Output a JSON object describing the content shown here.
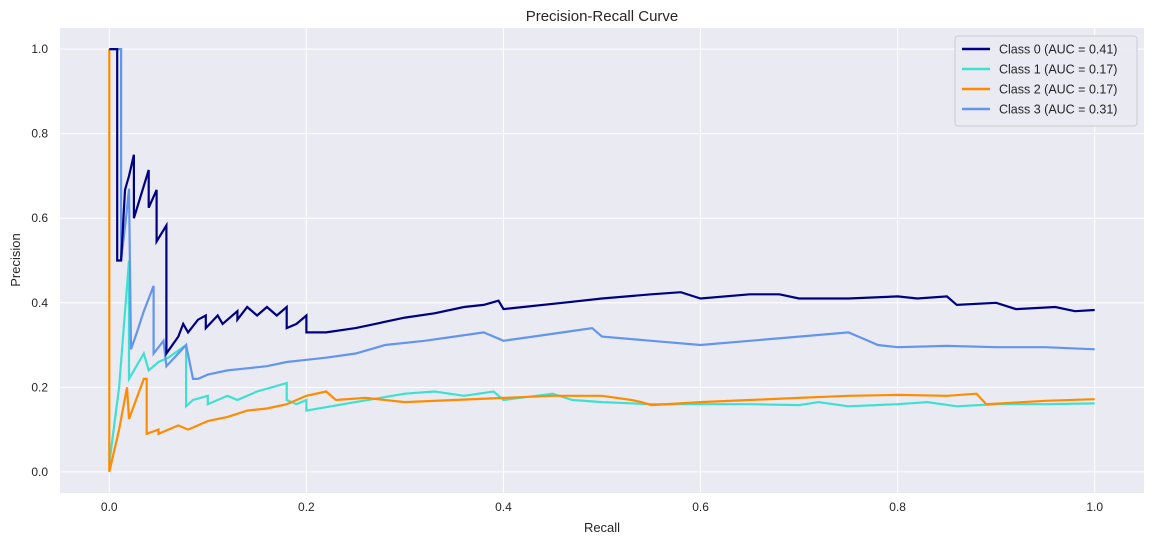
{
  "chart_data": {
    "type": "line",
    "title": "Precision-Recall Curve",
    "xlabel": "Recall",
    "ylabel": "Precision",
    "xlim": [
      -0.05,
      1.05
    ],
    "ylim": [
      -0.05,
      1.05
    ],
    "xticks": [
      0.0,
      0.2,
      0.4,
      0.6,
      0.8,
      1.0
    ],
    "yticks": [
      0.0,
      0.2,
      0.4,
      0.6,
      0.8,
      1.0
    ],
    "xtick_labels": [
      "0.0",
      "0.2",
      "0.4",
      "0.6",
      "0.8",
      "1.0"
    ],
    "ytick_labels": [
      "0.0",
      "0.2",
      "0.4",
      "0.6",
      "0.8",
      "1.0"
    ],
    "grid": true,
    "legend_position": "top-right",
    "style": {
      "background": "#eaeaf2",
      "grid_color": "#ffffff"
    },
    "series": [
      {
        "name": "Class 0 (AUC = 0.41)",
        "color": "#000080",
        "points": [
          [
            0,
            1
          ],
          [
            0.008,
            1
          ],
          [
            0.008,
            0.5
          ],
          [
            0.012,
            0.5
          ],
          [
            0.016,
            0.667
          ],
          [
            0.02,
            0.7
          ],
          [
            0.025,
            0.75
          ],
          [
            0.025,
            0.6
          ],
          [
            0.04,
            0.714
          ],
          [
            0.04,
            0.625
          ],
          [
            0.048,
            0.667
          ],
          [
            0.048,
            0.545
          ],
          [
            0.058,
            0.583
          ],
          [
            0.058,
            0.28
          ],
          [
            0.07,
            0.32
          ],
          [
            0.075,
            0.35
          ],
          [
            0.08,
            0.33
          ],
          [
            0.09,
            0.36
          ],
          [
            0.098,
            0.37
          ],
          [
            0.098,
            0.34
          ],
          [
            0.11,
            0.37
          ],
          [
            0.115,
            0.35
          ],
          [
            0.13,
            0.38
          ],
          [
            0.13,
            0.36
          ],
          [
            0.14,
            0.39
          ],
          [
            0.15,
            0.37
          ],
          [
            0.16,
            0.39
          ],
          [
            0.17,
            0.37
          ],
          [
            0.18,
            0.39
          ],
          [
            0.18,
            0.34
          ],
          [
            0.19,
            0.35
          ],
          [
            0.2,
            0.37
          ],
          [
            0.2,
            0.33
          ],
          [
            0.22,
            0.33
          ],
          [
            0.25,
            0.34
          ],
          [
            0.27,
            0.35
          ],
          [
            0.3,
            0.365
          ],
          [
            0.33,
            0.375
          ],
          [
            0.36,
            0.39
          ],
          [
            0.38,
            0.395
          ],
          [
            0.395,
            0.405
          ],
          [
            0.4,
            0.385
          ],
          [
            0.42,
            0.39
          ],
          [
            0.46,
            0.4
          ],
          [
            0.5,
            0.41
          ],
          [
            0.55,
            0.42
          ],
          [
            0.58,
            0.425
          ],
          [
            0.6,
            0.41
          ],
          [
            0.65,
            0.42
          ],
          [
            0.68,
            0.42
          ],
          [
            0.7,
            0.41
          ],
          [
            0.75,
            0.41
          ],
          [
            0.8,
            0.415
          ],
          [
            0.82,
            0.41
          ],
          [
            0.85,
            0.415
          ],
          [
            0.86,
            0.395
          ],
          [
            0.9,
            0.4
          ],
          [
            0.92,
            0.385
          ],
          [
            0.96,
            0.39
          ],
          [
            0.98,
            0.38
          ],
          [
            1.0,
            0.383
          ]
        ]
      },
      {
        "name": "Class 1 (AUC = 0.17)",
        "color": "#40e0d0",
        "points": [
          [
            0,
            0.02
          ],
          [
            0.01,
            0.2
          ],
          [
            0.02,
            0.5
          ],
          [
            0.02,
            0.22
          ],
          [
            0.035,
            0.28
          ],
          [
            0.04,
            0.24
          ],
          [
            0.05,
            0.26
          ],
          [
            0.06,
            0.27
          ],
          [
            0.078,
            0.3
          ],
          [
            0.078,
            0.155
          ],
          [
            0.085,
            0.17
          ],
          [
            0.1,
            0.18
          ],
          [
            0.1,
            0.16
          ],
          [
            0.12,
            0.18
          ],
          [
            0.13,
            0.17
          ],
          [
            0.15,
            0.19
          ],
          [
            0.18,
            0.21
          ],
          [
            0.18,
            0.17
          ],
          [
            0.19,
            0.16
          ],
          [
            0.2,
            0.17
          ],
          [
            0.2,
            0.145
          ],
          [
            0.25,
            0.165
          ],
          [
            0.3,
            0.185
          ],
          [
            0.33,
            0.19
          ],
          [
            0.36,
            0.18
          ],
          [
            0.39,
            0.19
          ],
          [
            0.4,
            0.17
          ],
          [
            0.45,
            0.185
          ],
          [
            0.47,
            0.17
          ],
          [
            0.5,
            0.165
          ],
          [
            0.55,
            0.16
          ],
          [
            0.6,
            0.16
          ],
          [
            0.65,
            0.16
          ],
          [
            0.7,
            0.158
          ],
          [
            0.72,
            0.165
          ],
          [
            0.75,
            0.155
          ],
          [
            0.8,
            0.16
          ],
          [
            0.83,
            0.165
          ],
          [
            0.86,
            0.155
          ],
          [
            0.9,
            0.16
          ],
          [
            0.95,
            0.16
          ],
          [
            1.0,
            0.162
          ]
        ]
      },
      {
        "name": "Class 2 (AUC = 0.17)",
        "color": "#ff8c00",
        "points": [
          [
            0,
            1
          ],
          [
            0,
            0.0
          ],
          [
            0.01,
            0.1
          ],
          [
            0.018,
            0.2
          ],
          [
            0.02,
            0.125
          ],
          [
            0.035,
            0.22
          ],
          [
            0.038,
            0.22
          ],
          [
            0.038,
            0.09
          ],
          [
            0.05,
            0.1
          ],
          [
            0.05,
            0.09
          ],
          [
            0.07,
            0.11
          ],
          [
            0.08,
            0.1
          ],
          [
            0.1,
            0.12
          ],
          [
            0.12,
            0.13
          ],
          [
            0.14,
            0.145
          ],
          [
            0.16,
            0.15
          ],
          [
            0.18,
            0.16
          ],
          [
            0.2,
            0.18
          ],
          [
            0.22,
            0.19
          ],
          [
            0.23,
            0.17
          ],
          [
            0.26,
            0.175
          ],
          [
            0.3,
            0.165
          ],
          [
            0.35,
            0.17
          ],
          [
            0.4,
            0.175
          ],
          [
            0.45,
            0.18
          ],
          [
            0.5,
            0.18
          ],
          [
            0.53,
            0.17
          ],
          [
            0.54,
            0.165
          ],
          [
            0.55,
            0.158
          ],
          [
            0.6,
            0.165
          ],
          [
            0.65,
            0.17
          ],
          [
            0.7,
            0.175
          ],
          [
            0.75,
            0.18
          ],
          [
            0.8,
            0.182
          ],
          [
            0.85,
            0.18
          ],
          [
            0.88,
            0.185
          ],
          [
            0.89,
            0.16
          ],
          [
            0.95,
            0.168
          ],
          [
            1.0,
            0.172
          ]
        ]
      },
      {
        "name": "Class 3 (AUC = 0.31)",
        "color": "#6495ed",
        "points": [
          [
            0.0,
            1
          ],
          [
            0.012,
            1
          ],
          [
            0.012,
            0.5
          ],
          [
            0.017,
            0.6
          ],
          [
            0.02,
            0.67
          ],
          [
            0.022,
            0.29
          ],
          [
            0.028,
            0.33
          ],
          [
            0.035,
            0.38
          ],
          [
            0.045,
            0.44
          ],
          [
            0.045,
            0.28
          ],
          [
            0.055,
            0.31
          ],
          [
            0.058,
            0.25
          ],
          [
            0.07,
            0.28
          ],
          [
            0.078,
            0.3
          ],
          [
            0.085,
            0.22
          ],
          [
            0.09,
            0.22
          ],
          [
            0.1,
            0.23
          ],
          [
            0.12,
            0.24
          ],
          [
            0.14,
            0.245
          ],
          [
            0.16,
            0.25
          ],
          [
            0.18,
            0.26
          ],
          [
            0.2,
            0.265
          ],
          [
            0.22,
            0.27
          ],
          [
            0.25,
            0.28
          ],
          [
            0.28,
            0.3
          ],
          [
            0.32,
            0.31
          ],
          [
            0.35,
            0.32
          ],
          [
            0.38,
            0.33
          ],
          [
            0.4,
            0.31
          ],
          [
            0.43,
            0.32
          ],
          [
            0.46,
            0.33
          ],
          [
            0.49,
            0.34
          ],
          [
            0.5,
            0.32
          ],
          [
            0.55,
            0.31
          ],
          [
            0.6,
            0.3
          ],
          [
            0.65,
            0.31
          ],
          [
            0.7,
            0.32
          ],
          [
            0.75,
            0.33
          ],
          [
            0.77,
            0.31
          ],
          [
            0.78,
            0.3
          ],
          [
            0.8,
            0.295
          ],
          [
            0.85,
            0.298
          ],
          [
            0.9,
            0.295
          ],
          [
            0.95,
            0.295
          ],
          [
            1.0,
            0.29
          ]
        ]
      }
    ]
  }
}
